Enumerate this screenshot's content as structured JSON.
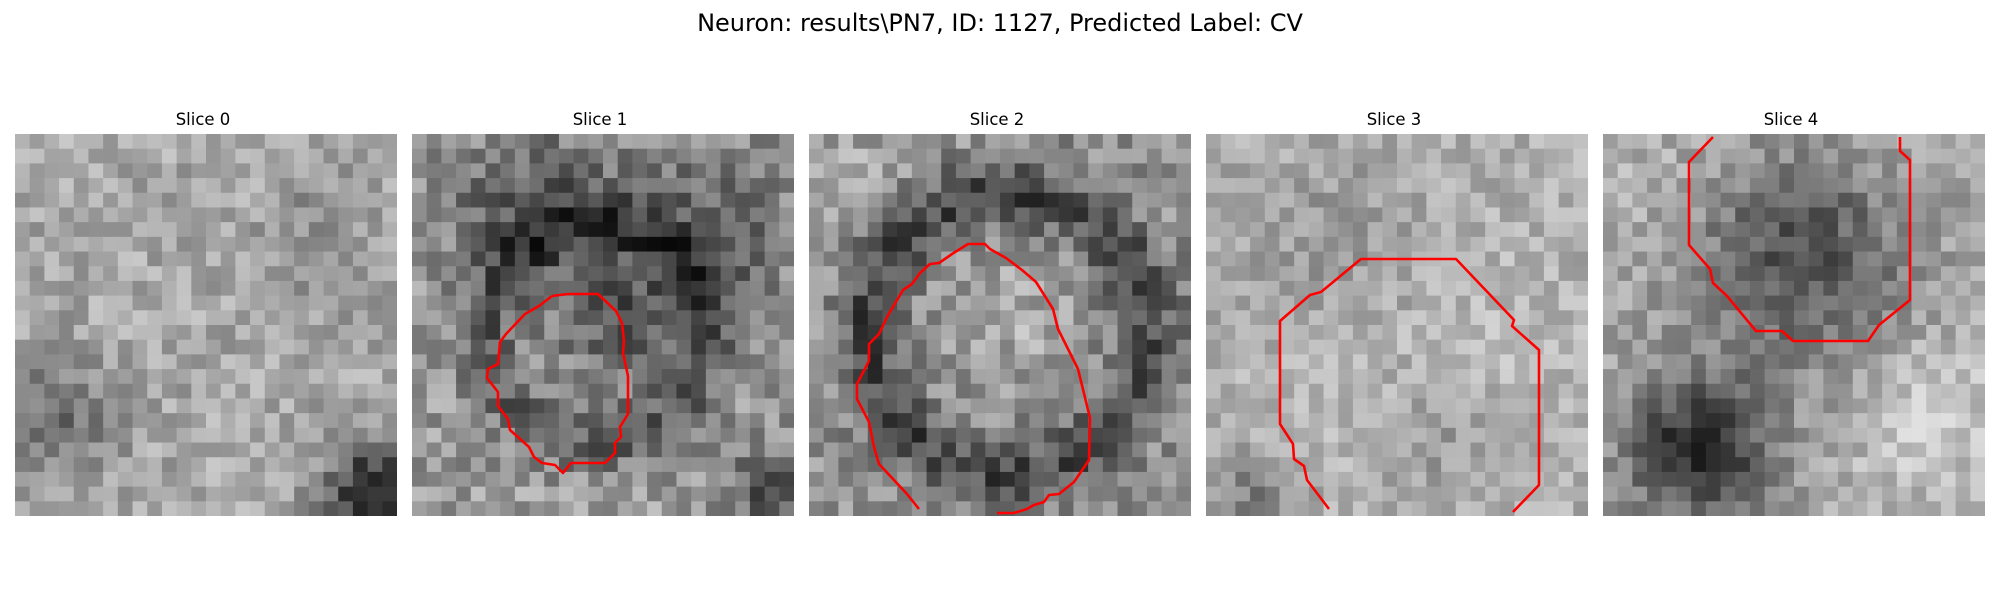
{
  "figure": {
    "title": "Neuron: results\\PN7, ID: 1127, Predicted Label: CV"
  },
  "panels": [
    {
      "title": "Slice 0",
      "has_contour": false
    },
    {
      "title": "Slice 1",
      "has_contour": true
    },
    {
      "title": "Slice 2",
      "has_contour": true
    },
    {
      "title": "Slice 3",
      "has_contour": true
    },
    {
      "title": "Slice 4",
      "has_contour": true
    }
  ],
  "contour_color": "#ff0000",
  "colormap": "grayscale"
}
